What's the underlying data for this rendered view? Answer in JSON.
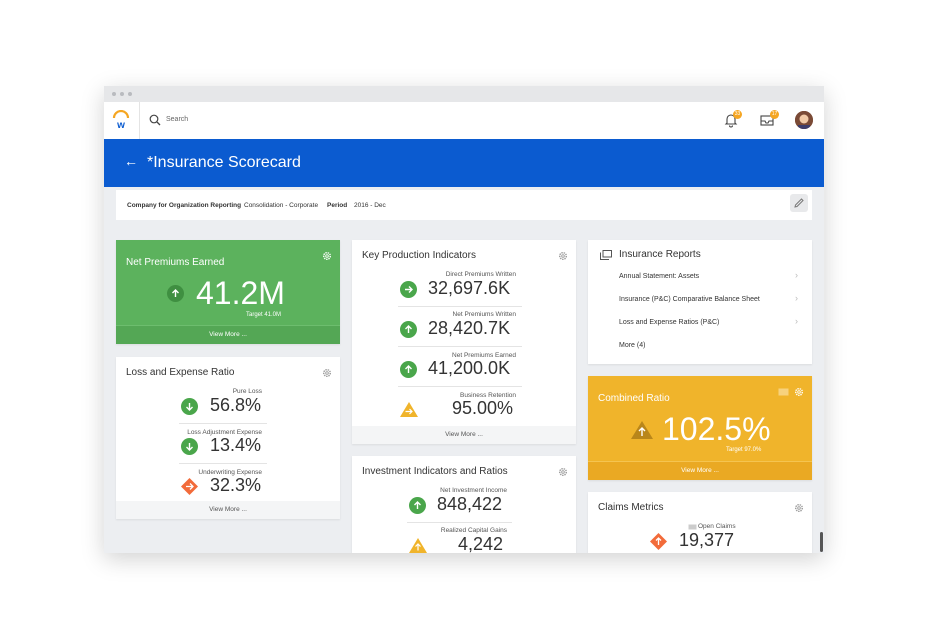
{
  "app": {
    "search_placeholder": "Search",
    "notifications_count": "33",
    "inbox_count": "17",
    "page_title": "*Insurance Scorecard"
  },
  "filters": {
    "company_label": "Company for Organization Reporting",
    "company_value": "Consolidation - Corporate",
    "period_label": "Period",
    "period_value": "2016 - Dec"
  },
  "net_premiums": {
    "title": "Net Premiums Earned",
    "value": "41.2M",
    "target": "Target  41.0M",
    "view_more": "View More ..."
  },
  "loss_ratio": {
    "title": "Loss and Expense Ratio",
    "items": [
      {
        "label": "Pure Loss",
        "value": "56.8%"
      },
      {
        "label": "Loss Adjustment Expense",
        "value": "13.4%"
      },
      {
        "label": "Underwriting Expense",
        "value": "32.3%"
      }
    ],
    "view_more": "View More ..."
  },
  "kpi": {
    "title": "Key Production Indicators",
    "items": [
      {
        "label": "Direct Premiums Written",
        "value": "32,697.6K"
      },
      {
        "label": "Net Premiums Written",
        "value": "28,420.7K"
      },
      {
        "label": "Net Premiums Earned",
        "value": "41,200.0K"
      },
      {
        "label": "Business Retention",
        "value": "95.00%"
      }
    ],
    "view_more": "View More ..."
  },
  "investment": {
    "title": "Investment Indicators and Ratios",
    "items": [
      {
        "label": "Net Investment Income",
        "value": "848,422"
      },
      {
        "label": "Realized Capital Gains",
        "value": "4,242"
      }
    ]
  },
  "reports": {
    "title": "Insurance Reports",
    "items": [
      "Annual Statement: Assets",
      "Insurance (P&C) Comparative Balance Sheet",
      "Loss and Expense Ratios (P&C)",
      "More (4)"
    ]
  },
  "combined": {
    "title": "Combined Ratio",
    "value": "102.5%",
    "target": "Target  97.0%",
    "view_more": "View More ..."
  },
  "claims": {
    "title": "Claims Metrics",
    "label": "Open Claims",
    "value": "19,377"
  },
  "colors": {
    "header_blue": "#0b5bd0",
    "green": "#5cb25d",
    "gold": "#f0b42b",
    "up_green": "#4aa64b",
    "warn_orange": "#f26b3a"
  }
}
